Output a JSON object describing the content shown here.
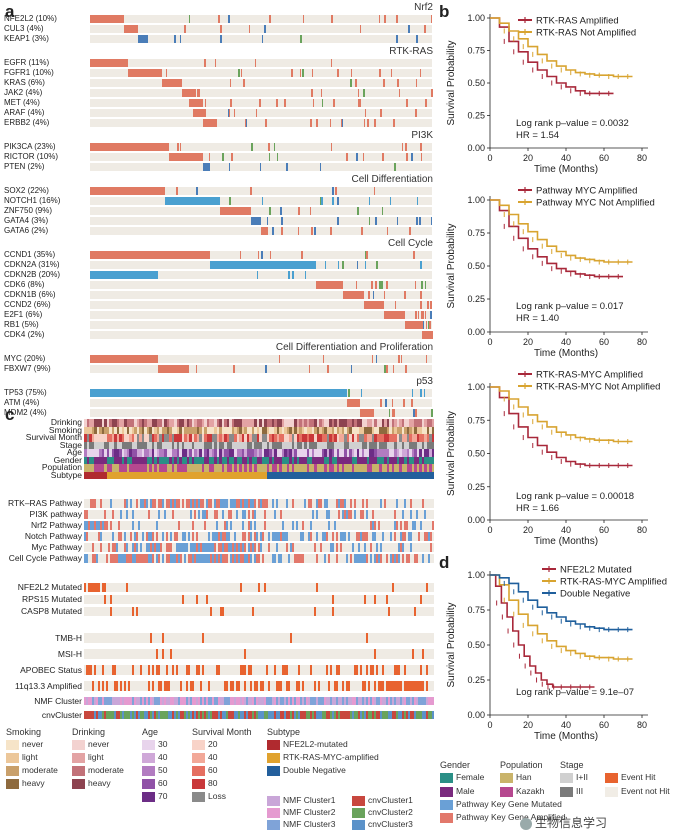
{
  "panels": {
    "a": "a",
    "b": "b",
    "c": "c",
    "d": "d"
  },
  "panel_a": {
    "groups": [
      {
        "title": "Nrf2",
        "genes": [
          {
            "label": "NFE2L2 (10%)",
            "block": [
              0,
              0.1
            ],
            "color": "#e07a63"
          },
          {
            "label": "CUL3 (4%)",
            "block": [
              0.1,
              0.14
            ],
            "color": "#e07a63"
          },
          {
            "label": "KEAP1 (3%)",
            "block": [
              0.14,
              0.17
            ],
            "color": "#4a7db8"
          }
        ]
      },
      {
        "title": "RTK-RAS",
        "genes": [
          {
            "label": "EGFR (11%)",
            "block": [
              0,
              0.11
            ],
            "color": "#e07a63"
          },
          {
            "label": "FGFR1 (10%)",
            "block": [
              0.11,
              0.21
            ],
            "color": "#e07a63"
          },
          {
            "label": "KRAS (6%)",
            "block": [
              0.21,
              0.27
            ],
            "color": "#e07a63"
          },
          {
            "label": "JAK2 (4%)",
            "block": [
              0.27,
              0.31
            ],
            "color": "#e07a63"
          },
          {
            "label": "MET (4%)",
            "block": [
              0.29,
              0.33
            ],
            "color": "#e07a63"
          },
          {
            "label": "ARAF (4%)",
            "block": [
              0.3,
              0.34
            ],
            "color": "#e07a63"
          },
          {
            "label": "ERBB2 (4%)",
            "block": [
              0.33,
              0.37
            ],
            "color": "#e07a63"
          }
        ]
      },
      {
        "title": "PI3K",
        "genes": [
          {
            "label": "PIK3CA (23%)",
            "block": [
              0,
              0.23
            ],
            "color": "#e07a63"
          },
          {
            "label": "RICTOR (10%)",
            "block": [
              0.23,
              0.33
            ],
            "color": "#e07a63"
          },
          {
            "label": "PTEN (2%)",
            "block": [
              0.33,
              0.35
            ],
            "color": "#4a7db8"
          }
        ]
      },
      {
        "title": "Cell Differentiation",
        "genes": [
          {
            "label": "SOX2 (22%)",
            "block": [
              0,
              0.22
            ],
            "color": "#e07a63"
          },
          {
            "label": "NOTCH1 (16%)",
            "block": [
              0.22,
              0.38
            ],
            "color": "#4aa0d0"
          },
          {
            "label": "ZNF750 (9%)",
            "block": [
              0.38,
              0.47
            ],
            "color": "#e07a63"
          },
          {
            "label": "GATA4 (3%)",
            "block": [
              0.47,
              0.5
            ],
            "color": "#4a7db8"
          },
          {
            "label": "GATA6 (2%)",
            "block": [
              0.5,
              0.52
            ],
            "color": "#e07a63"
          }
        ]
      },
      {
        "title": "Cell Cycle",
        "genes": [
          {
            "label": "CCND1 (35%)",
            "block": [
              0,
              0.35
            ],
            "color": "#e07a63"
          },
          {
            "label": "CDKN2A (31%)",
            "block": [
              0.35,
              0.66
            ],
            "color": "#4aa0d0"
          },
          {
            "label": "CDKN2B (20%)",
            "block": [
              0,
              0.2
            ],
            "color": "#4aa0d0"
          },
          {
            "label": "CDK6 (8%)",
            "block": [
              0.66,
              0.74
            ],
            "color": "#e07a63"
          },
          {
            "label": "CDKN1B (6%)",
            "block": [
              0.74,
              0.8
            ],
            "color": "#e07a63"
          },
          {
            "label": "CCND2 (6%)",
            "block": [
              0.8,
              0.86
            ],
            "color": "#e07a63"
          },
          {
            "label": "E2F1 (6%)",
            "block": [
              0.86,
              0.92
            ],
            "color": "#e07a63"
          },
          {
            "label": "RB1 (5%)",
            "block": [
              0.92,
              0.97
            ],
            "color": "#e07a63"
          },
          {
            "label": "CDK4 (2%)",
            "block": [
              0.97,
              0.99
            ],
            "color": "#e07a63"
          }
        ]
      },
      {
        "title": "Cell Differentiation and Proliferation",
        "genes": [
          {
            "label": "MYC (20%)",
            "block": [
              0,
              0.2
            ],
            "color": "#e07a63"
          },
          {
            "label": "FBXW7 (9%)",
            "block": [
              0.2,
              0.29
            ],
            "color": "#e07a63"
          }
        ]
      },
      {
        "title": "p53",
        "genes": [
          {
            "label": "TP53 (75%)",
            "block": [
              0,
              0.75
            ],
            "color": "#4aa0d0"
          },
          {
            "label": "ATM (4%)",
            "block": [
              0.75,
              0.79
            ],
            "color": "#e07a63"
          },
          {
            "label": "MDM2 (4%)",
            "block": [
              0.79,
              0.83
            ],
            "color": "#e07a63"
          }
        ]
      }
    ]
  },
  "panel_c": {
    "clinical_tracks": [
      "Drinking",
      "Smoking",
      "Survival Month",
      "Stage",
      "Age",
      "Gender",
      "Population",
      "Subtype"
    ],
    "pathway_tracks": [
      "RTK–RAS Pathway",
      "PI3K pathway",
      "Nrf2 Pathway",
      "Notch Pathway",
      "Myc Pathway",
      "Cell Cycle Pathway"
    ],
    "mutation_tracks": [
      "NFE2L2 Mutated",
      "RPS15 Mutated",
      "CASP8 Mutated"
    ],
    "genomic_tracks": [
      "TMB-H",
      "MSI-H",
      "APOBEC Status",
      "11q13.3 Amplified"
    ],
    "cluster_tracks": [
      "NMF Cluster",
      "cnvCluster"
    ]
  },
  "legend": {
    "smoking": {
      "title": "Smoking",
      "items": [
        {
          "label": "never",
          "color": "#f6e4c8"
        },
        {
          "label": "light",
          "color": "#ecc79a"
        },
        {
          "label": "moderate",
          "color": "#c9a06b"
        },
        {
          "label": "heavy",
          "color": "#8e6a3e"
        }
      ]
    },
    "drinking": {
      "title": "Drinking",
      "items": [
        {
          "label": "never",
          "color": "#f3d2d0"
        },
        {
          "label": "light",
          "color": "#e3a3a4"
        },
        {
          "label": "moderate",
          "color": "#c27279"
        },
        {
          "label": "heavy",
          "color": "#8d4350"
        }
      ]
    },
    "age": {
      "title": "Age",
      "items": [
        {
          "label": "30",
          "color": "#e8d4ec"
        },
        {
          "label": "40",
          "color": "#cfa8d8"
        },
        {
          "label": "50",
          "color": "#b27cc1"
        },
        {
          "label": "60",
          "color": "#9052a7"
        },
        {
          "label": "70",
          "color": "#6c2d86"
        }
      ]
    },
    "survival_month": {
      "title": "Survival Month",
      "items": [
        {
          "label": "20",
          "color": "#f8d3c8"
        },
        {
          "label": "40",
          "color": "#f2a898"
        },
        {
          "label": "60",
          "color": "#e56f61"
        },
        {
          "label": "80",
          "color": "#c9383a"
        },
        {
          "label": "Loss",
          "color": "#8a8a8a"
        }
      ]
    },
    "subtype": {
      "title": "Subtype",
      "items": [
        {
          "label": "NFE2L2-mutated",
          "color": "#b02a2f"
        },
        {
          "label": "RTK-RAS-MYC-amplified",
          "color": "#e0a22e"
        },
        {
          "label": "Double Negative",
          "color": "#235f9c"
        }
      ]
    },
    "nmf": {
      "items": [
        {
          "label": "NMF Cluster1",
          "color": "#c9a6d8"
        },
        {
          "label": "NMF Cluster2",
          "color": "#e59ad0"
        },
        {
          "label": "NMF Cluster3",
          "color": "#7fa3d8"
        }
      ]
    },
    "cnv": {
      "items": [
        {
          "label": "cnvCluster1",
          "color": "#c8473e"
        },
        {
          "label": "cnvCluster2",
          "color": "#6aa35c"
        },
        {
          "label": "cnvCluster3",
          "color": "#5b92c9"
        }
      ]
    },
    "gender": {
      "title": "Gender",
      "items": [
        {
          "label": "Female",
          "color": "#2a8f86"
        },
        {
          "label": "Male",
          "color": "#7a2a7e"
        }
      ]
    },
    "population": {
      "title": "Population",
      "items": [
        {
          "label": "Han",
          "color": "#c9b36a"
        },
        {
          "label": "Kazakh",
          "color": "#b6488f"
        }
      ]
    },
    "stage": {
      "title": "Stage",
      "items": [
        {
          "label": "I+II",
          "color": "#d0d0d0"
        },
        {
          "label": "III",
          "color": "#7a7a7a"
        }
      ]
    },
    "event": {
      "items": [
        {
          "label": "Event Hit",
          "color": "#e8632f"
        },
        {
          "label": "Event not Hit",
          "color": "#f1ede6"
        }
      ]
    },
    "pathway": {
      "items": [
        {
          "label": "Pathway Key Gene Mutated",
          "color": "#6aa0d6"
        },
        {
          "label": "Pathway Key Gene Amplified",
          "color": "#e2786b"
        }
      ]
    }
  },
  "km_common": {
    "ylabel": "Survival Probability",
    "xlabel": "Time (Months)",
    "yticks": [
      "0.00",
      "0.25",
      "0.50",
      "0.75",
      "1.00"
    ],
    "xticks": [
      "0",
      "20",
      "40",
      "60",
      "80"
    ]
  },
  "chart_data": [
    {
      "type": "line",
      "title": "b1",
      "xlabel": "Time (Months)",
      "ylabel": "Survival Probability",
      "xlim": [
        0,
        80
      ],
      "ylim": [
        0,
        1
      ],
      "series": [
        {
          "name": "RTK-RAS Amplified",
          "color": "#a8283a",
          "x": [
            0,
            5,
            10,
            15,
            20,
            25,
            30,
            35,
            40,
            45,
            50,
            55,
            60,
            65
          ],
          "y": [
            1.0,
            0.93,
            0.82,
            0.74,
            0.66,
            0.6,
            0.55,
            0.5,
            0.47,
            0.44,
            0.42,
            0.42,
            0.42,
            0.42
          ]
        },
        {
          "name": "RTK-RAS Not Amplified",
          "color": "#d8a430",
          "x": [
            0,
            5,
            10,
            15,
            20,
            25,
            30,
            35,
            40,
            45,
            50,
            55,
            60,
            65,
            70,
            75
          ],
          "y": [
            1.0,
            0.96,
            0.9,
            0.84,
            0.78,
            0.72,
            0.67,
            0.63,
            0.6,
            0.58,
            0.57,
            0.56,
            0.56,
            0.55,
            0.55,
            0.55
          ]
        }
      ],
      "annotations": [
        "Log rank p–value = 0.0032",
        "HR = 1.54"
      ]
    },
    {
      "type": "line",
      "title": "b2",
      "xlabel": "Time (Months)",
      "ylabel": "Survival Probability",
      "xlim": [
        0,
        80
      ],
      "ylim": [
        0,
        1
      ],
      "series": [
        {
          "name": "Pathway MYC Amplified",
          "color": "#a8283a",
          "x": [
            0,
            5,
            10,
            15,
            20,
            25,
            30,
            35,
            40,
            45,
            50,
            55,
            60,
            65,
            70
          ],
          "y": [
            1.0,
            0.92,
            0.8,
            0.71,
            0.63,
            0.57,
            0.52,
            0.48,
            0.46,
            0.44,
            0.43,
            0.42,
            0.42,
            0.42,
            0.42
          ]
        },
        {
          "name": "Pathway MYC Not Amplified",
          "color": "#d8a430",
          "x": [
            0,
            5,
            10,
            15,
            20,
            25,
            30,
            35,
            40,
            45,
            50,
            55,
            60,
            65,
            70,
            75
          ],
          "y": [
            1.0,
            0.96,
            0.89,
            0.82,
            0.76,
            0.7,
            0.65,
            0.61,
            0.58,
            0.56,
            0.55,
            0.54,
            0.53,
            0.53,
            0.53,
            0.53
          ]
        }
      ],
      "annotations": [
        "Log rank p–value = 0.017",
        "HR = 1.40"
      ]
    },
    {
      "type": "line",
      "title": "b3",
      "xlabel": "Time (Months)",
      "ylabel": "Survival Probability",
      "xlim": [
        0,
        80
      ],
      "ylim": [
        0,
        1
      ],
      "series": [
        {
          "name": "RTK-RAS-MYC Amplified",
          "color": "#a8283a",
          "x": [
            0,
            5,
            10,
            15,
            20,
            25,
            30,
            35,
            40,
            45,
            50,
            55,
            60,
            65,
            70,
            75
          ],
          "y": [
            1.0,
            0.92,
            0.8,
            0.7,
            0.62,
            0.56,
            0.51,
            0.47,
            0.44,
            0.42,
            0.41,
            0.41,
            0.41,
            0.41,
            0.41,
            0.41
          ]
        },
        {
          "name": "RTK-RAS-MYC Not Amplified",
          "color": "#d8a430",
          "x": [
            0,
            5,
            10,
            15,
            20,
            25,
            30,
            35,
            40,
            45,
            50,
            55,
            60,
            65,
            70,
            75
          ],
          "y": [
            1.0,
            0.97,
            0.91,
            0.85,
            0.79,
            0.74,
            0.7,
            0.66,
            0.64,
            0.62,
            0.61,
            0.6,
            0.6,
            0.59,
            0.59,
            0.59
          ]
        }
      ],
      "annotations": [
        "Log rank p–value = 0.00018",
        "HR = 1.66"
      ]
    },
    {
      "type": "line",
      "title": "d",
      "xlabel": "Time (Months)",
      "ylabel": "Survival Probability",
      "xlim": [
        0,
        80
      ],
      "ylim": [
        0,
        1
      ],
      "series": [
        {
          "name": "NFE2L2 Mutated",
          "color": "#a8283a",
          "x": [
            0,
            3,
            6,
            9,
            12,
            15,
            18,
            21,
            24,
            27,
            30,
            33,
            36,
            40,
            45,
            50,
            55
          ],
          "y": [
            1.0,
            0.92,
            0.8,
            0.7,
            0.6,
            0.5,
            0.42,
            0.35,
            0.3,
            0.25,
            0.22,
            0.2,
            0.2,
            0.2,
            0.2,
            0.2,
            0.2
          ]
        },
        {
          "name": "RTK-RAS-MYC Amplified",
          "color": "#d8a430",
          "x": [
            0,
            5,
            10,
            15,
            20,
            25,
            30,
            35,
            40,
            45,
            50,
            55,
            60,
            65,
            70,
            75
          ],
          "y": [
            1.0,
            0.93,
            0.82,
            0.72,
            0.64,
            0.58,
            0.53,
            0.49,
            0.46,
            0.44,
            0.42,
            0.41,
            0.41,
            0.4,
            0.4,
            0.4
          ]
        },
        {
          "name": "Double Negative",
          "color": "#1f5f9c",
          "x": [
            0,
            5,
            10,
            15,
            20,
            25,
            30,
            35,
            40,
            45,
            50,
            55,
            60,
            65,
            70,
            75
          ],
          "y": [
            1.0,
            0.98,
            0.94,
            0.88,
            0.82,
            0.77,
            0.73,
            0.7,
            0.67,
            0.65,
            0.63,
            0.62,
            0.61,
            0.61,
            0.61,
            0.61
          ]
        }
      ],
      "annotations": [
        "Log rank p–value = 9.1e–07"
      ]
    }
  ],
  "watermark": "生物信息学习"
}
